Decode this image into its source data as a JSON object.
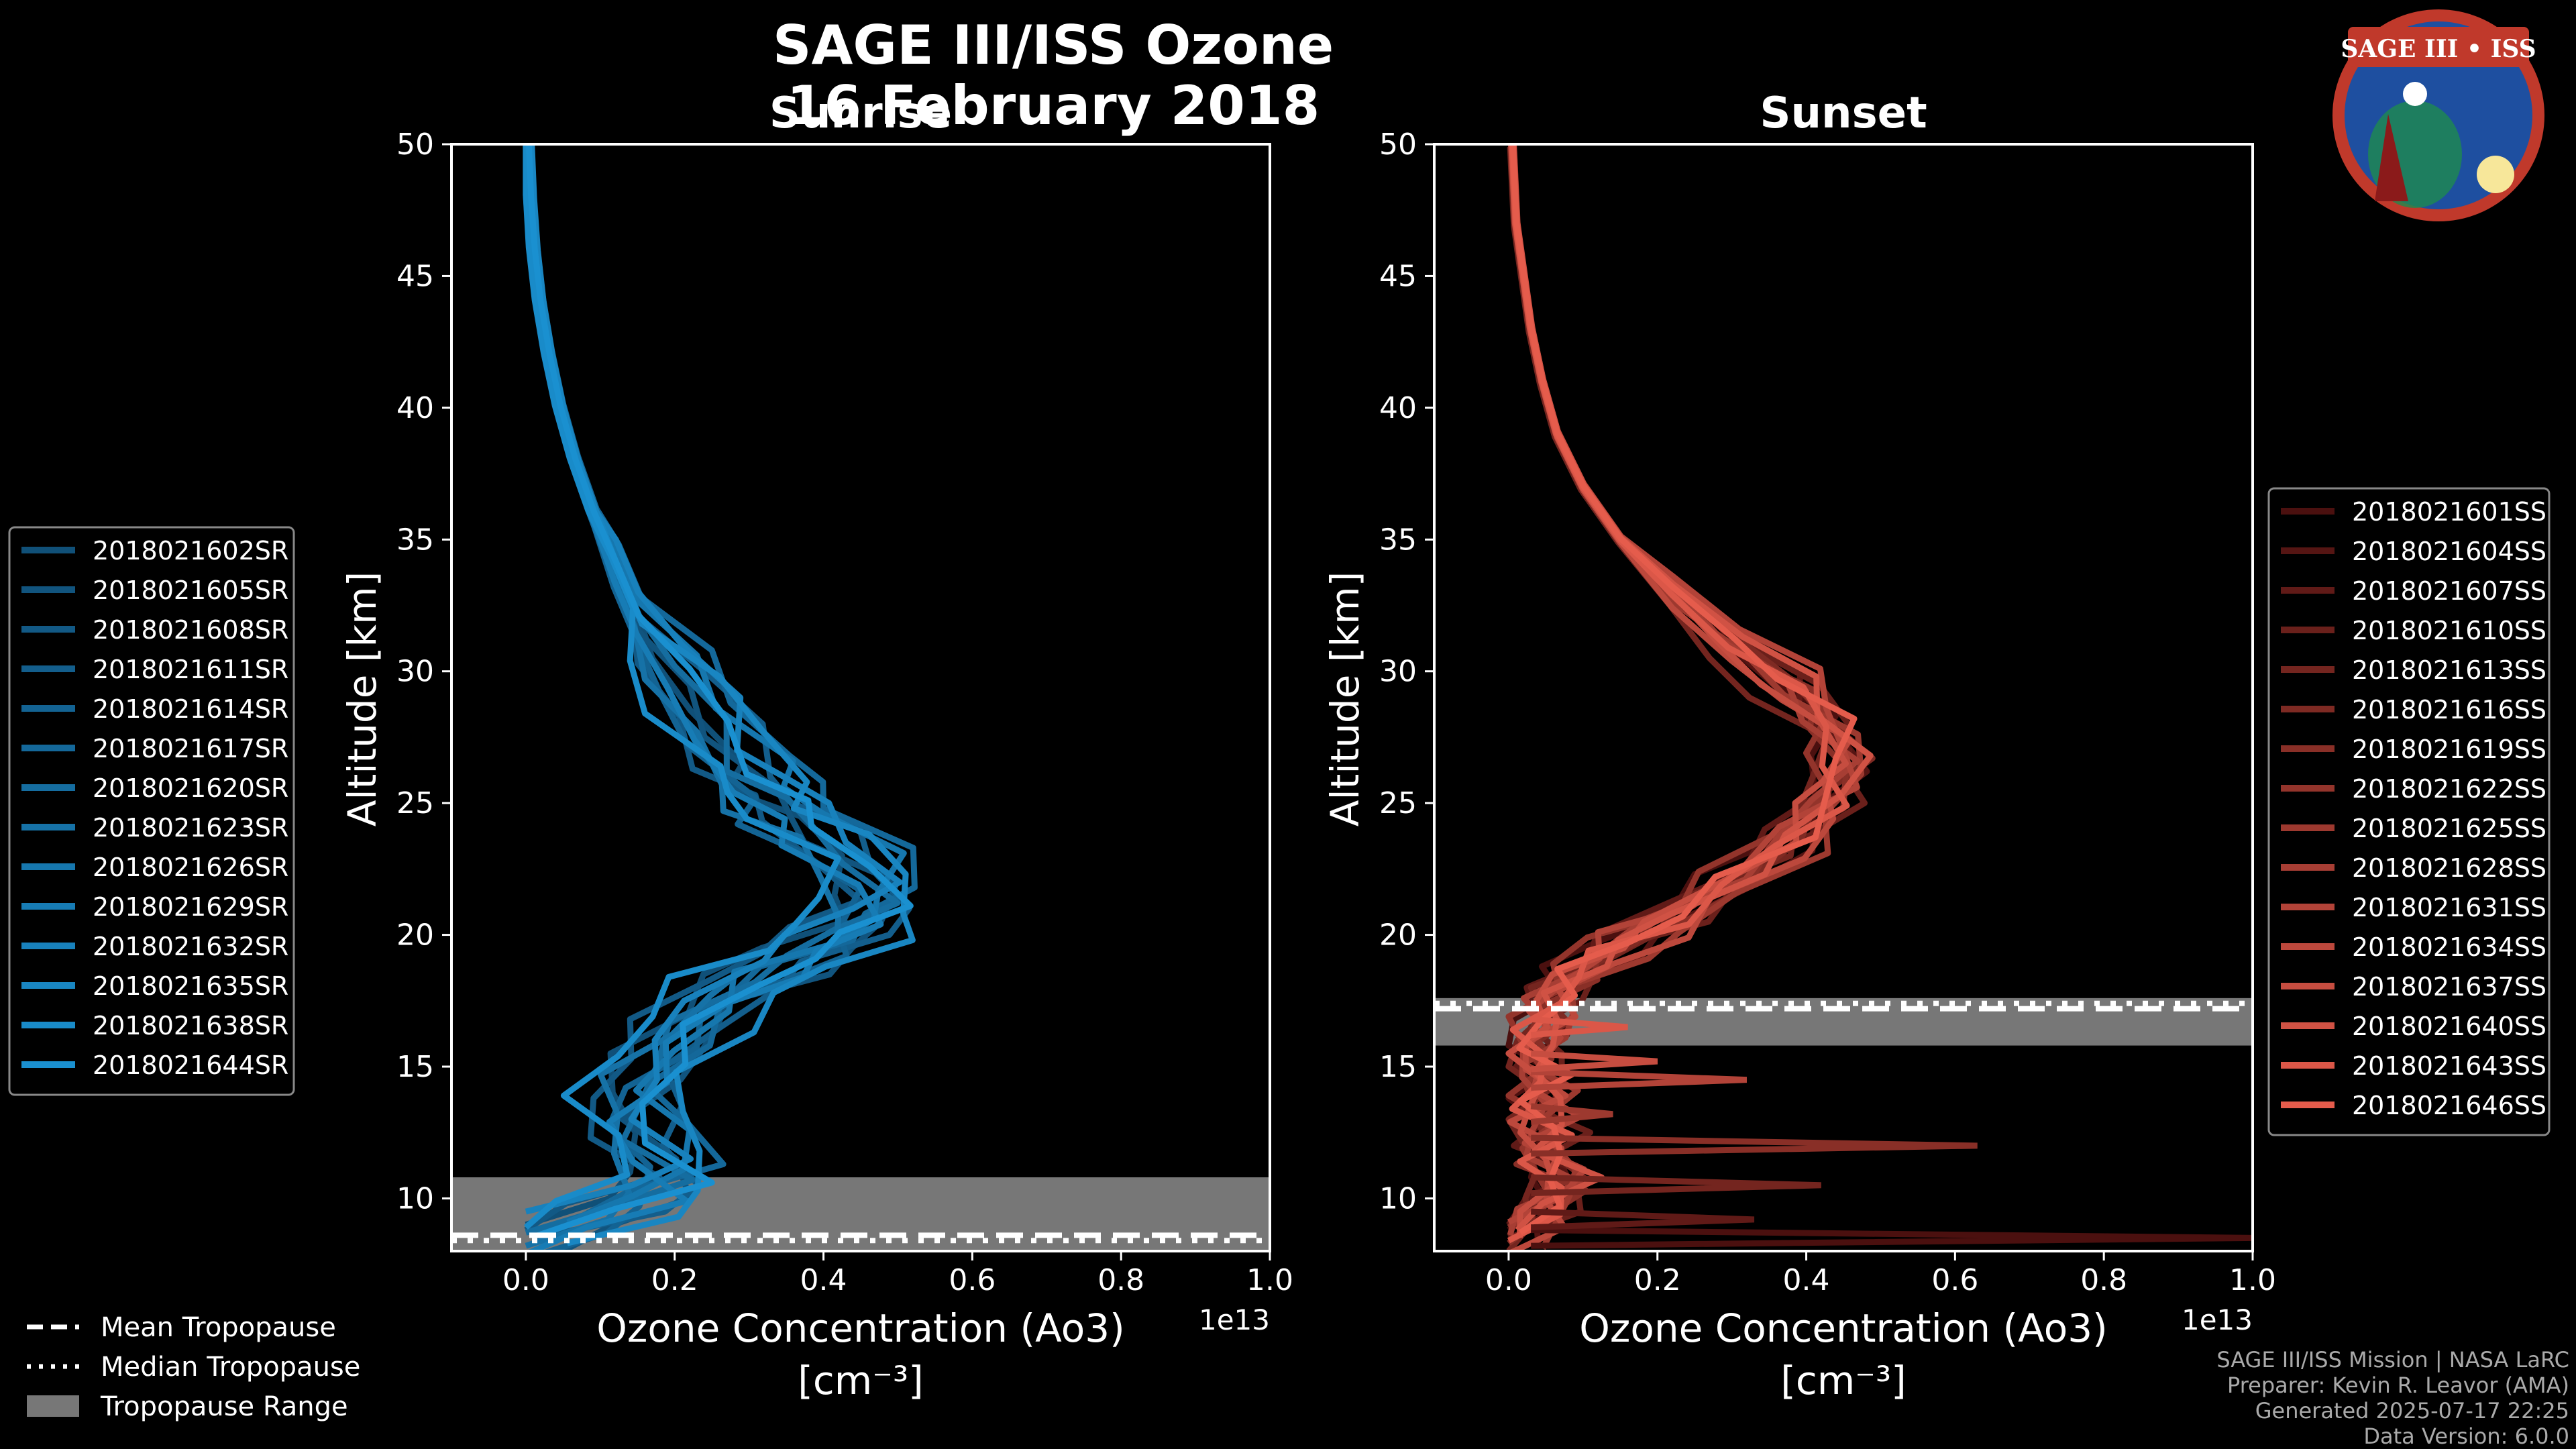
{
  "header": {
    "title_line1": "SAGE III/ISS Ozone",
    "title_line2": "16 February 2018",
    "badge_text": "SAGE III • ISS"
  },
  "colors": {
    "sunrise": "#1a90d0",
    "sunset": "#e55c4c",
    "tropopause_band": "#777777",
    "background": "#000000"
  },
  "chart_data": [
    {
      "type": "line",
      "title": "Sunrise",
      "xlabel_line1": "Ozone Concentration (Ao3)",
      "xlabel_line2": "[cm⁻³]",
      "ylabel": "Altitude [km]",
      "x_scale_label": "1e13",
      "xlim": [
        -0.1,
        1.0
      ],
      "ylim": [
        8,
        50
      ],
      "xticks": [
        0.0,
        0.2,
        0.4,
        0.6,
        0.8,
        1.0
      ],
      "xtick_labels": [
        "0.0",
        "0.2",
        "0.4",
        "0.6",
        "0.8",
        "1.0"
      ],
      "yticks": [
        10,
        15,
        20,
        25,
        30,
        35,
        40,
        45,
        50
      ],
      "ytick_labels": [
        "10",
        "15",
        "20",
        "25",
        "30",
        "35",
        "40",
        "45",
        "50"
      ],
      "tropopause": {
        "mean": 8.6,
        "median": 8.4,
        "range": [
          8.0,
          10.8
        ]
      },
      "base_profile": [
        [
          0.0,
          8.5
        ],
        [
          0.12,
          9.5
        ],
        [
          0.2,
          10.5
        ],
        [
          0.16,
          12
        ],
        [
          0.14,
          13.5
        ],
        [
          0.17,
          15
        ],
        [
          0.22,
          16.5
        ],
        [
          0.28,
          18
        ],
        [
          0.36,
          19
        ],
        [
          0.43,
          20
        ],
        [
          0.47,
          21
        ],
        [
          0.45,
          22.5
        ],
        [
          0.38,
          24
        ],
        [
          0.33,
          25
        ],
        [
          0.3,
          26
        ],
        [
          0.25,
          28
        ],
        [
          0.2,
          30
        ],
        [
          0.15,
          32
        ],
        [
          0.12,
          34
        ],
        [
          0.09,
          36
        ],
        [
          0.065,
          38
        ],
        [
          0.045,
          40
        ],
        [
          0.03,
          42
        ],
        [
          0.018,
          44
        ],
        [
          0.01,
          46
        ],
        [
          0.005,
          48
        ],
        [
          0.002,
          50
        ]
      ],
      "legend_position": "left",
      "series": [
        {
          "name": "2018021602SR",
          "dx": -0.03,
          "dz": 0.5
        },
        {
          "name": "2018021605SR",
          "dx": 0.02,
          "dz": -0.5
        },
        {
          "name": "2018021608SR",
          "dx": -0.05,
          "dz": 0.3
        },
        {
          "name": "2018021611SR",
          "dx": 0.04,
          "dz": 0.0
        },
        {
          "name": "2018021614SR",
          "dx": -0.02,
          "dz": -0.8
        },
        {
          "name": "2018021617SR",
          "dx": 0.05,
          "dz": 0.8
        },
        {
          "name": "2018021620SR",
          "dx": 0.0,
          "dz": 0.2
        },
        {
          "name": "2018021623SR",
          "dx": -0.04,
          "dz": -0.3
        },
        {
          "name": "2018021626SR",
          "dx": 0.03,
          "dz": 0.6
        },
        {
          "name": "2018021629SR",
          "dx": -0.01,
          "dz": -0.6
        },
        {
          "name": "2018021632SR",
          "dx": 0.01,
          "dz": 1.0
        },
        {
          "name": "2018021635SR",
          "dx": 0.06,
          "dz": -0.2
        },
        {
          "name": "2018021638SR",
          "dx": -0.06,
          "dz": 0.4
        },
        {
          "name": "2018021644SR",
          "dx": 0.02,
          "dz": 0.1
        }
      ]
    },
    {
      "type": "line",
      "title": "Sunset",
      "xlabel_line1": "Ozone Concentration (Ao3)",
      "xlabel_line2": "[cm⁻³]",
      "ylabel": "Altitude [km]",
      "x_scale_label": "1e13",
      "xlim": [
        -0.1,
        1.0
      ],
      "ylim": [
        8,
        50
      ],
      "xticks": [
        0.0,
        0.2,
        0.4,
        0.6,
        0.8,
        1.0
      ],
      "xtick_labels": [
        "0.0",
        "0.2",
        "0.4",
        "0.6",
        "0.8",
        "1.0"
      ],
      "yticks": [
        10,
        15,
        20,
        25,
        30,
        35,
        40,
        45,
        50
      ],
      "ytick_labels": [
        "10",
        "15",
        "20",
        "25",
        "30",
        "35",
        "40",
        "45",
        "50"
      ],
      "tropopause": {
        "mean": 17.2,
        "median": 17.4,
        "range": [
          15.8,
          17.6
        ]
      },
      "base_profile": [
        [
          0.0,
          8.5
        ],
        [
          0.05,
          9.5
        ],
        [
          0.08,
          10.5
        ],
        [
          0.04,
          11.5
        ],
        [
          0.06,
          12.5
        ],
        [
          0.03,
          13.5
        ],
        [
          0.05,
          14.5
        ],
        [
          0.03,
          15.5
        ],
        [
          0.04,
          16.5
        ],
        [
          0.06,
          17.5
        ],
        [
          0.09,
          18.5
        ],
        [
          0.14,
          19.5
        ],
        [
          0.22,
          20.5
        ],
        [
          0.3,
          22
        ],
        [
          0.38,
          23.5
        ],
        [
          0.43,
          25
        ],
        [
          0.45,
          26.5
        ],
        [
          0.43,
          28
        ],
        [
          0.38,
          29.5
        ],
        [
          0.3,
          31
        ],
        [
          0.22,
          33
        ],
        [
          0.15,
          35
        ],
        [
          0.1,
          37
        ],
        [
          0.065,
          39
        ],
        [
          0.045,
          41
        ],
        [
          0.03,
          43
        ],
        [
          0.02,
          45
        ],
        [
          0.01,
          47
        ],
        [
          0.005,
          50
        ]
      ],
      "legend_position": "right",
      "series": [
        {
          "name": "2018021601SS",
          "dx": -0.02,
          "dz": 0.3
        },
        {
          "name": "2018021604SS",
          "dx": 0.01,
          "dz": -0.3
        },
        {
          "name": "2018021607SS",
          "dx": -0.01,
          "dz": 0.5
        },
        {
          "name": "2018021610SS",
          "dx": 0.02,
          "dz": 0.0
        },
        {
          "name": "2018021613SS",
          "dx": -0.03,
          "dz": -0.5
        },
        {
          "name": "2018021616SS",
          "dx": 0.01,
          "dz": 0.2
        },
        {
          "name": "2018021619SS",
          "dx": 0.0,
          "dz": -0.2
        },
        {
          "name": "2018021622SS",
          "dx": -0.02,
          "dz": 0.4
        },
        {
          "name": "2018021625SS",
          "dx": 0.02,
          "dz": -0.4
        },
        {
          "name": "2018021628SS",
          "dx": -0.01,
          "dz": 0.1
        },
        {
          "name": "2018021631SS",
          "dx": 0.01,
          "dz": 0.6
        },
        {
          "name": "2018021634SS",
          "dx": 0.0,
          "dz": -0.6
        },
        {
          "name": "2018021637SS",
          "dx": -0.015,
          "dz": 0.0
        },
        {
          "name": "2018021640SS",
          "dx": 0.015,
          "dz": 0.3
        },
        {
          "name": "2018021643SS",
          "dx": -0.005,
          "dz": -0.1
        },
        {
          "name": "2018021646SS",
          "dx": 0.005,
          "dz": 0.2
        }
      ],
      "spikes": [
        {
          "alt": 8.5,
          "value": 1.0
        },
        {
          "alt": 9.2,
          "value": 0.33
        },
        {
          "alt": 10.5,
          "value": 0.42
        },
        {
          "alt": 12.0,
          "value": 0.63
        },
        {
          "alt": 13.2,
          "value": 0.14
        },
        {
          "alt": 14.5,
          "value": 0.32
        },
        {
          "alt": 15.2,
          "value": 0.2
        },
        {
          "alt": 16.5,
          "value": 0.16
        }
      ]
    }
  ],
  "bottom_legend": {
    "mean": "Mean Tropopause",
    "median": "Median Tropopause",
    "range": "Tropopause Range"
  },
  "footer": {
    "line1": "SAGE III/ISS Mission | NASA LaRC",
    "line2": "Preparer: Kevin R. Leavor (AMA)",
    "line3": "Generated 2025-07-17 22:25",
    "line4": "Data Version: 6.0.0"
  }
}
